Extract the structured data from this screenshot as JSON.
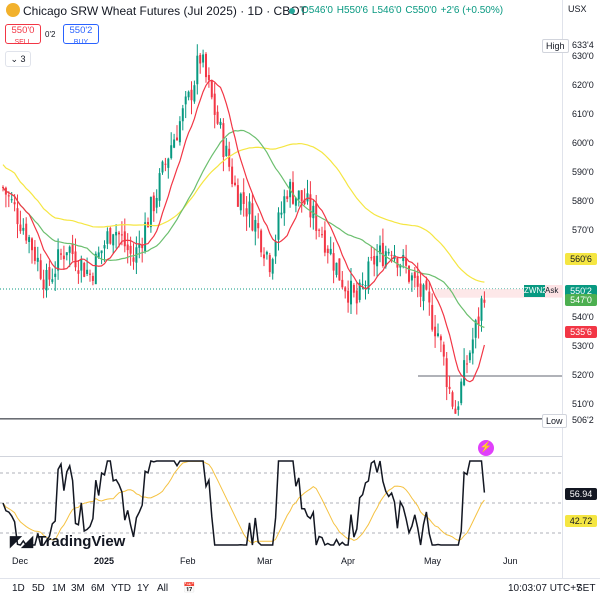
{
  "header": {
    "title": "Chicago SRW Wheat Futures (Jul 2025) · 1D · CBOT",
    "ohlc": [
      "O546'0",
      "H550'6",
      "L546'0",
      "C550'0",
      "+2'6 (+0.50%)"
    ]
  },
  "trade": {
    "sell_price": "550'0",
    "sell_label": "SELL",
    "spread": "0'2",
    "buy_price": "550'2",
    "buy_label": "BUY"
  },
  "collapse_label": "3",
  "price_axis": {
    "currency": "USX",
    "ticks": [
      {
        "label": "630'0",
        "v": 630
      },
      {
        "label": "620'0",
        "v": 620
      },
      {
        "label": "610'0",
        "v": 610
      },
      {
        "label": "600'0",
        "v": 600
      },
      {
        "label": "590'0",
        "v": 590
      },
      {
        "label": "580'0",
        "v": 580
      },
      {
        "label": "570'0",
        "v": 570
      },
      {
        "label": "540'0",
        "v": 540
      },
      {
        "label": "530'0",
        "v": 530
      },
      {
        "label": "520'0",
        "v": 520
      },
      {
        "label": "510'0",
        "v": 510
      }
    ],
    "high_tag": "High",
    "high_value": "633'4",
    "low_tag": "Low",
    "low_value": "506'2",
    "ma_slow": "560'6",
    "ask_tag": "ZWN2",
    "ask_label": "Ask",
    "ask_value": "550'2",
    "ma_mid": "547'0",
    "ma_fast": "535'6",
    "rsi_value": "56.94",
    "rsi_ma": "42.72",
    "colors": {
      "up": "#089981",
      "down": "#f23645",
      "ma_fast": "#f23645",
      "ma_mid": "#4caf50",
      "ma_slow": "#f5e642",
      "ask": "#089981"
    }
  },
  "time_axis": [
    "Dec",
    "2025",
    "Feb",
    "Mar",
    "Apr",
    "May",
    "Jun"
  ],
  "ranges": [
    "1D",
    "5D",
    "1M",
    "3M",
    "6M",
    "YTD",
    "1Y",
    "All"
  ],
  "clock": "10:03:07 UTC+7",
  "set_label": "SET",
  "logo": "TradingView"
}
